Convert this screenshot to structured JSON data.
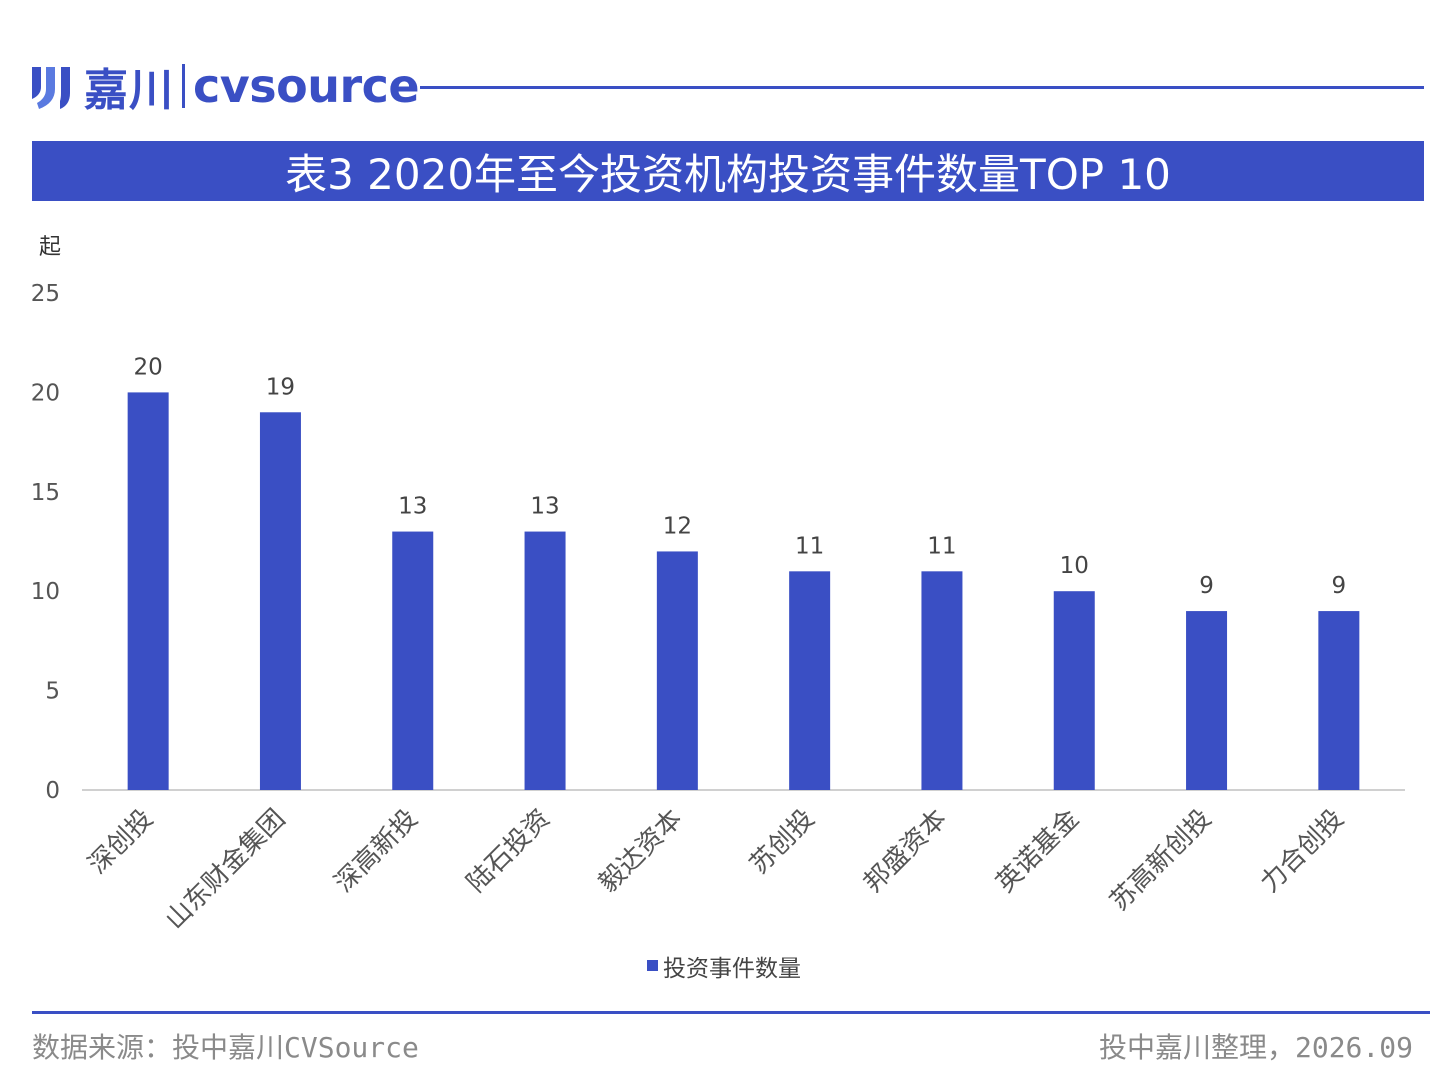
{
  "brand": {
    "name_cn": "嘉川",
    "name_en": "cvsource",
    "color": "#3a4fc4"
  },
  "title": "表3 2020年至今投资机构投资事件数量TOP 10",
  "chart_data": {
    "type": "bar",
    "ylabel": "起",
    "ylim": [
      0,
      25
    ],
    "yticks": [
      0,
      5,
      10,
      15,
      20,
      25
    ],
    "categories": [
      "深创投",
      "山东财金集团",
      "深高新投",
      "陆石投资",
      "毅达资本",
      "苏创投",
      "邦盛资本",
      "英诺基金",
      "苏高新创投",
      "力合创投"
    ],
    "series": [
      {
        "name": "投资事件数量",
        "values": [
          20,
          19,
          13,
          13,
          12,
          11,
          11,
          10,
          9,
          9
        ],
        "color": "#3a4fc4"
      }
    ],
    "data_labels": true,
    "grid": false,
    "legend": "bottom"
  },
  "footer": {
    "source": "数据来源：投中嘉川CVSource",
    "credit": "投中嘉川整理，2026.09"
  }
}
